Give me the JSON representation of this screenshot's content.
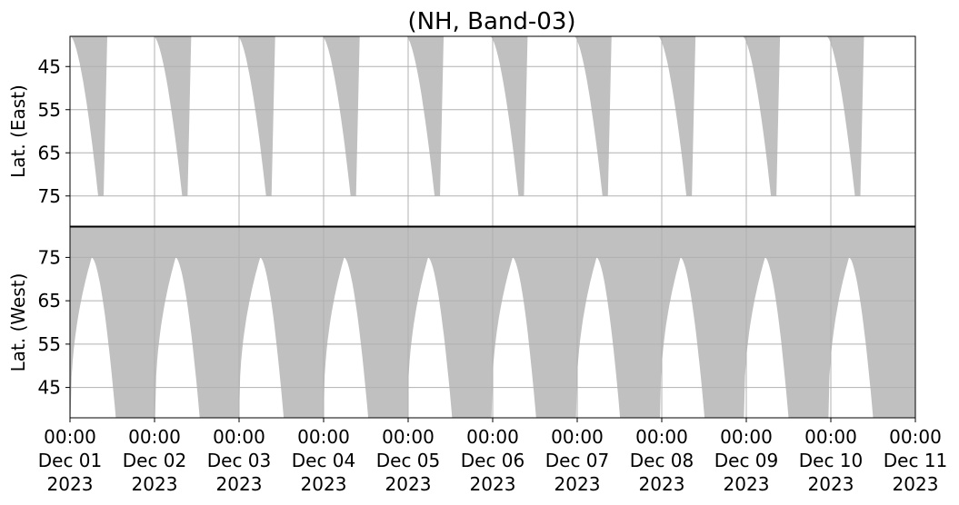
{
  "chart_data": {
    "type": "area",
    "title": "(NH, Band-03)",
    "fill_color": "#c0c0c0",
    "grid": true,
    "x_ticks": [
      {
        "time": "00:00",
        "date": "Dec 01",
        "year": "2023"
      },
      {
        "time": "00:00",
        "date": "Dec 02",
        "year": "2023"
      },
      {
        "time": "00:00",
        "date": "Dec 03",
        "year": "2023"
      },
      {
        "time": "00:00",
        "date": "Dec 04",
        "year": "2023"
      },
      {
        "time": "00:00",
        "date": "Dec 05",
        "year": "2023"
      },
      {
        "time": "00:00",
        "date": "Dec 06",
        "year": "2023"
      },
      {
        "time": "00:00",
        "date": "Dec 07",
        "year": "2023"
      },
      {
        "time": "00:00",
        "date": "Dec 08",
        "year": "2023"
      },
      {
        "time": "00:00",
        "date": "Dec 09",
        "year": "2023"
      },
      {
        "time": "00:00",
        "date": "Dec 10",
        "year": "2023"
      },
      {
        "time": "00:00",
        "date": "Dec 11",
        "year": "2023"
      }
    ],
    "x_range": [
      "2023-12-01 00:00",
      "2023-12-11 00:00"
    ],
    "panels": [
      {
        "ylabel": "Lat. (East)",
        "ylim": [
          38,
          82
        ],
        "y_inverted": true,
        "yticks": [
          45,
          55,
          65,
          75
        ],
        "coverage": [
          {
            "start": "2023-12-01 00:10",
            "dip_end": "2023-12-01 08:00",
            "min_lat": 75
          },
          {
            "start": "2023-12-01 23:50",
            "dip_end": "2023-12-02 07:50",
            "min_lat": 75
          },
          {
            "start": "2023-12-02 23:40",
            "dip_end": "2023-12-03 07:40",
            "min_lat": 75
          },
          {
            "start": "2023-12-03 23:40",
            "dip_end": "2023-12-04 07:40",
            "min_lat": 75
          },
          {
            "start": "2023-12-04 23:30",
            "dip_end": "2023-12-05 07:30",
            "min_lat": 75
          },
          {
            "start": "2023-12-05 23:20",
            "dip_end": "2023-12-06 07:20",
            "min_lat": 75
          },
          {
            "start": "2023-12-06 23:10",
            "dip_end": "2023-12-07 07:10",
            "min_lat": 75
          },
          {
            "start": "2023-12-07 23:00",
            "dip_end": "2023-12-08 07:00",
            "min_lat": 75
          },
          {
            "start": "2023-12-08 23:00",
            "dip_end": "2023-12-09 07:00",
            "min_lat": 75
          },
          {
            "start": "2023-12-09 22:50",
            "dip_end": "2023-12-10 06:50",
            "min_lat": 75
          }
        ]
      },
      {
        "ylabel": "Lat. (West)",
        "ylim": [
          38,
          82
        ],
        "y_inverted": false,
        "yticks": [
          45,
          55,
          65,
          75
        ],
        "gaps": [
          {
            "start": "2023-12-01 00:10",
            "peak": "2023-12-01 06:10",
            "end": "2023-12-01 13:00",
            "max_lat": 75
          },
          {
            "start": "2023-12-02 00:10",
            "peak": "2023-12-02 06:00",
            "end": "2023-12-02 12:50",
            "max_lat": 75
          },
          {
            "start": "2023-12-03 00:00",
            "peak": "2023-12-03 06:00",
            "end": "2023-12-03 12:40",
            "max_lat": 75
          },
          {
            "start": "2023-12-04 00:00",
            "peak": "2023-12-04 05:50",
            "end": "2023-12-04 12:40",
            "max_lat": 75
          },
          {
            "start": "2023-12-04 23:50",
            "peak": "2023-12-05 05:40",
            "end": "2023-12-05 12:30",
            "max_lat": 75
          },
          {
            "start": "2023-12-05 23:40",
            "peak": "2023-12-06 05:40",
            "end": "2023-12-06 12:20",
            "max_lat": 75
          },
          {
            "start": "2023-12-06 23:40",
            "peak": "2023-12-07 05:30",
            "end": "2023-12-07 12:10",
            "max_lat": 75
          },
          {
            "start": "2023-12-07 23:30",
            "peak": "2023-12-08 05:20",
            "end": "2023-12-08 12:10",
            "max_lat": 75
          },
          {
            "start": "2023-12-08 23:20",
            "peak": "2023-12-09 05:20",
            "end": "2023-12-09 12:00",
            "max_lat": 75
          },
          {
            "start": "2023-12-09 23:20",
            "peak": "2023-12-10 05:10",
            "end": "2023-12-10 12:00",
            "max_lat": 75
          }
        ]
      }
    ]
  }
}
